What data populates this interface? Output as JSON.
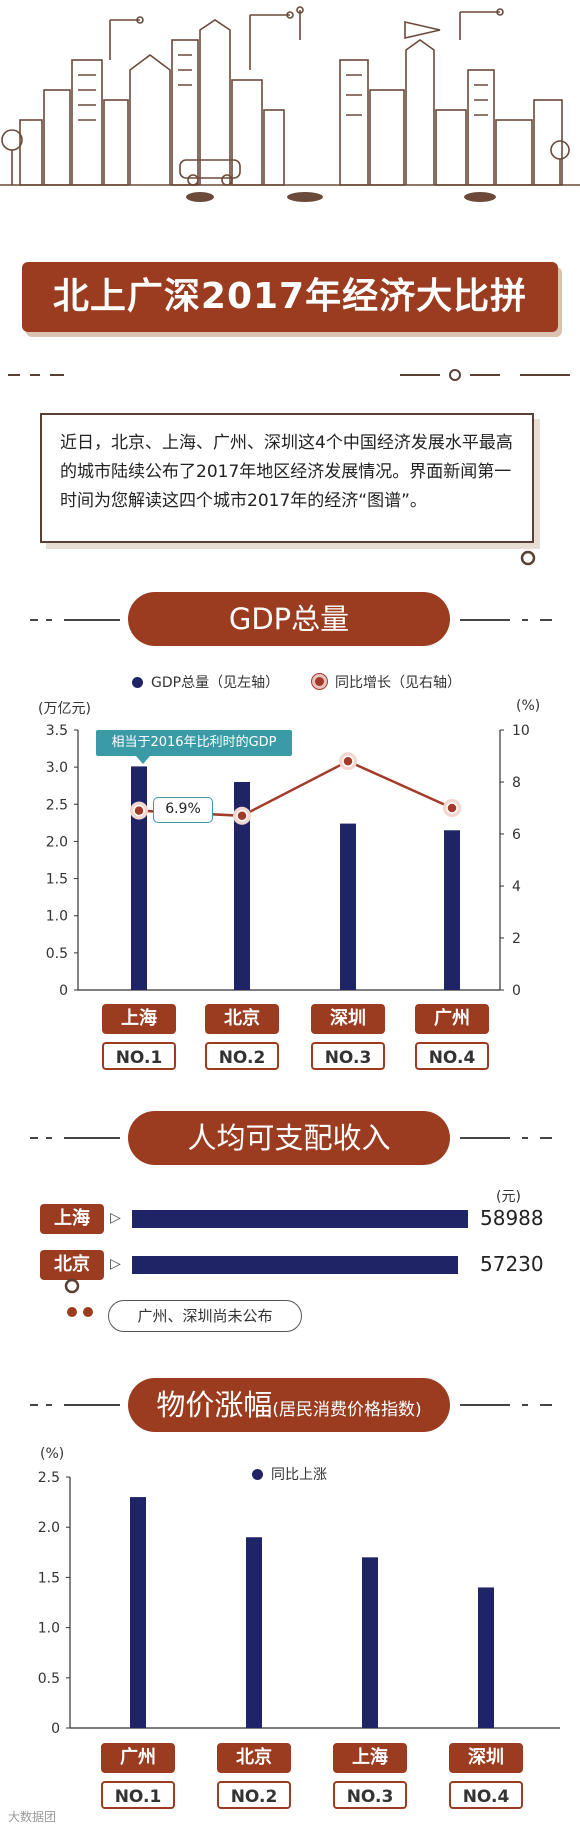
{
  "title": "北上广深2017年经济大比拼",
  "intro": "近日，北京、上海、广州、深圳这4个中国经济发展水平最高的城市陆续公布了2017年地区经济发展情况。界面新闻第一时间为您解读这四个城市2017年的经济“图谱”。",
  "sections": {
    "gdp": "GDP总量",
    "income": "人均可支配收入",
    "cpi_main": "物价涨幅",
    "cpi_sub": "(居民消费价格指数)"
  },
  "colors": {
    "brand": "#9b3b1f",
    "bar": "#1f2466",
    "line": "#a33a2a",
    "callout": "#3a9ba6"
  },
  "chart_data": [
    {
      "type": "bar",
      "categories": [
        "上海",
        "北京",
        "深圳",
        "广州"
      ],
      "ranks": [
        "NO.1",
        "NO.2",
        "NO.3",
        "NO.4"
      ],
      "series": [
        {
          "name": "GDP总量（见左轴）",
          "values": [
            3.01,
            2.8,
            2.24,
            2.15
          ],
          "axis": "left"
        },
        {
          "name": "同比增长（见右轴）",
          "type": "line",
          "values": [
            6.9,
            6.7,
            8.8,
            7.0
          ],
          "axis": "right"
        }
      ],
      "left_unit": "(万亿元)",
      "right_unit": "(%)",
      "ylim_left": [
        0,
        3.5
      ],
      "yticks_left": [
        "0",
        "0.5",
        "1.0",
        "1.5",
        "2.0",
        "2.5",
        "3.0",
        "3.5"
      ],
      "ylim_right": [
        0,
        10
      ],
      "yticks_right": [
        "0",
        "2",
        "4",
        "6",
        "8",
        "10"
      ],
      "annotation": "相当于2016年比利时的GDP",
      "point_label": "6.9%",
      "legend_placement": "top"
    },
    {
      "type": "bar",
      "orientation": "horizontal",
      "categories": [
        "上海",
        "北京"
      ],
      "values": [
        58988,
        57230
      ],
      "value_labels": [
        "58988",
        "57230"
      ],
      "unit": "(元)",
      "note": "广州、深圳尚未公布"
    },
    {
      "type": "bar",
      "categories": [
        "广州",
        "北京",
        "上海",
        "深圳"
      ],
      "ranks": [
        "NO.1",
        "NO.2",
        "NO.3",
        "NO.4"
      ],
      "series": [
        {
          "name": "同比上涨",
          "values": [
            2.3,
            1.9,
            1.7,
            1.4
          ]
        }
      ],
      "unit": "(%)",
      "ylim": [
        0,
        2.5
      ],
      "yticks": [
        "0",
        "0.5",
        "1.0",
        "1.5",
        "2.0",
        "2.5"
      ],
      "legend_placement": "top"
    }
  ],
  "watermark": "大数据团"
}
